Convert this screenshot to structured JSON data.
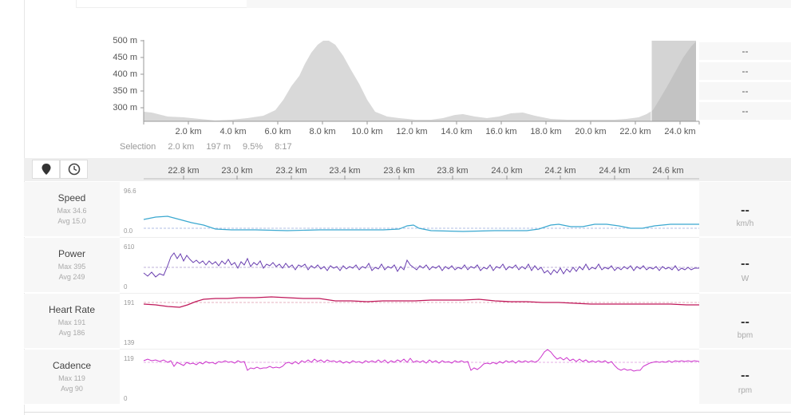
{
  "colors": {
    "speed": "#3aa8d0",
    "power": "#6a3fb0",
    "heart_rate": "#c0185a",
    "cadence": "#cc33cc",
    "elevation_fill": "#d9d9d9",
    "selection_fill": "#b0b0b0"
  },
  "elevation": {
    "y_ticks": [
      "500 m",
      "450 m",
      "400 m",
      "350 m",
      "300 m"
    ],
    "x_ticks": [
      "2.0 km",
      "4.0 km",
      "6.0 km",
      "8.0 km",
      "10.0 km",
      "12.0 km",
      "14.0 km",
      "16.0 km",
      "18.0 km",
      "20.0 km",
      "22.0 km",
      "24.0 km"
    ],
    "side_values": [
      "--",
      "--",
      "--",
      "--"
    ]
  },
  "selection": {
    "label": "Selection",
    "distance": "2.0 km",
    "elevation": "197 m",
    "grade": "9.5%",
    "time": "8:17"
  },
  "toolbar": {
    "map_icon": "map-pin-icon",
    "clock_icon": "clock-icon"
  },
  "zoom_axis": {
    "ticks": [
      "22.8 km",
      "23.0 km",
      "23.2 km",
      "23.4 km",
      "23.6 km",
      "23.8 km",
      "24.0 km",
      "24.2 km",
      "24.4 km",
      "24.6 km"
    ]
  },
  "metrics": [
    {
      "name": "Speed",
      "max": "Max 34.6",
      "avg": "Avg 15.0",
      "top": "96.6",
      "bottom": "0.0",
      "value": "--",
      "unit": "km/h"
    },
    {
      "name": "Power",
      "max": "Max 395",
      "avg": "Avg 249",
      "top": "610",
      "bottom": "0",
      "value": "--",
      "unit": "W"
    },
    {
      "name": "Heart Rate",
      "max": "Max 191",
      "avg": "Avg 186",
      "top": "191",
      "bottom": "139",
      "value": "--",
      "unit": "bpm"
    },
    {
      "name": "Cadence",
      "max": "Max 119",
      "avg": "Avg 90",
      "top": "119",
      "bottom": "0",
      "value": "--",
      "unit": "rpm"
    }
  ]
}
